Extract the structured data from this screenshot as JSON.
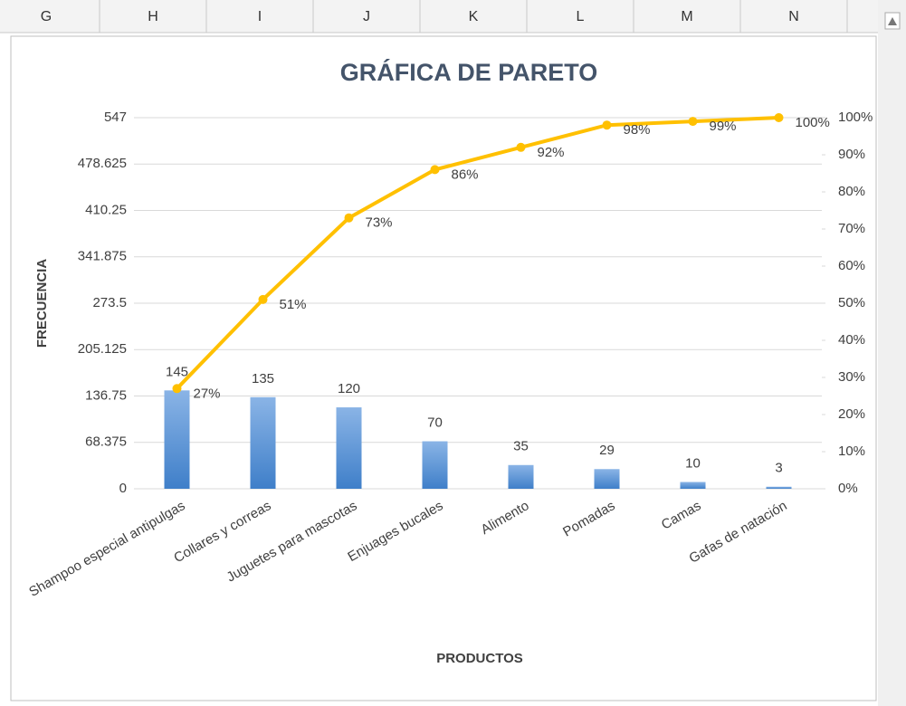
{
  "columns": [
    "G",
    "H",
    "I",
    "J",
    "K",
    "L",
    "M",
    "N"
  ],
  "chart_data": {
    "type": "bar",
    "title": "GRÁFICA DE PARETO",
    "x_label": "PRODUCTOS",
    "y_label": "FRECUENCIA",
    "categories": [
      "Shampoo especial antipulgas",
      "Collares y correas",
      "Juguetes para mascotas",
      "Enjuages bucales",
      "Alimento",
      "Pomadas",
      "Camas",
      "Gafas de natación"
    ],
    "series": [
      {
        "type": "bar",
        "color": "#4a8ad6",
        "values": [
          145,
          135,
          120,
          70,
          35,
          29,
          10,
          3
        ]
      },
      {
        "type": "line",
        "axis": "y2",
        "color": "#ffc000",
        "values": [
          27,
          51,
          73,
          86,
          92,
          98,
          99,
          100
        ],
        "value_labels": [
          "27%",
          "51%",
          "73%",
          "86%",
          "92%",
          "98%",
          "99%",
          "100%"
        ]
      }
    ],
    "ylim": [
      0,
      547
    ],
    "yticks": [
      0,
      68.375,
      136.75,
      205.125,
      273.5,
      341.875,
      410.25,
      478.625,
      547
    ],
    "y2lim": [
      0,
      100
    ],
    "y2ticks": [
      {
        "value": 0,
        "label": "0%"
      },
      {
        "value": 10,
        "label": "10%"
      },
      {
        "value": 20,
        "label": "20%"
      },
      {
        "value": 30,
        "label": "30%"
      },
      {
        "value": 40,
        "label": "40%"
      },
      {
        "value": 50,
        "label": "50%"
      },
      {
        "value": 60,
        "label": "60%"
      },
      {
        "value": 70,
        "label": "70%"
      },
      {
        "value": 80,
        "label": "80%"
      },
      {
        "value": 90,
        "label": "90%"
      },
      {
        "value": 100,
        "label": "100%"
      }
    ],
    "grid": true
  }
}
